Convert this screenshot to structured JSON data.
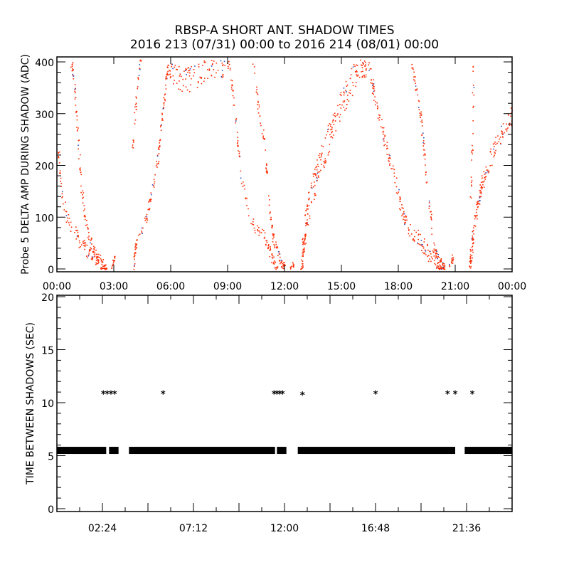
{
  "chart_data": [
    {
      "type": "scatter",
      "title": "RBSP-A SHORT ANT. SHADOW TIMES",
      "subtitle": "2016 213 (07/31) 00:00 to 2016 214 (08/01) 00:00",
      "xlabel": "",
      "ylabel": "Probe 5 DELTA AMP DURING SHADOW (ADC)",
      "xlim_hours": [
        0,
        24
      ],
      "ylim": [
        0,
        400
      ],
      "xticks": [
        "00:00",
        "03:00",
        "06:00",
        "09:00",
        "12:00",
        "15:00",
        "18:00",
        "21:00",
        "00:00"
      ],
      "yticks": [
        "0",
        "100",
        "200",
        "300",
        "400"
      ],
      "color": "#ff2a00",
      "tracks": [
        {
          "spread": 14,
          "n": 110,
          "points": [
            [
              0.0,
              250
            ],
            [
              0.2,
              160
            ],
            [
              0.5,
              100
            ],
            [
              0.9,
              75
            ],
            [
              1.2,
              50
            ],
            [
              1.6,
              35
            ],
            [
              2.0,
              22
            ],
            [
              2.4,
              8
            ],
            [
              2.6,
              0
            ]
          ]
        },
        {
          "spread": 10,
          "n": 110,
          "points": [
            [
              0.75,
              400
            ],
            [
              0.95,
              340
            ],
            [
              1.1,
              250
            ],
            [
              1.25,
              170
            ],
            [
              1.45,
              100
            ],
            [
              1.7,
              60
            ],
            [
              2.0,
              30
            ],
            [
              2.3,
              10
            ],
            [
              2.5,
              0
            ]
          ]
        },
        {
          "spread": 4,
          "n": 15,
          "points": [
            [
              2.85,
              3
            ],
            [
              2.95,
              12
            ],
            [
              3.0,
              25
            ]
          ]
        },
        {
          "spread": 8,
          "n": 120,
          "points": [
            [
              4.0,
              0
            ],
            [
              4.1,
              40
            ],
            [
              4.3,
              60
            ],
            [
              4.7,
              100
            ],
            [
              5.0,
              150
            ],
            [
              5.3,
              210
            ],
            [
              5.5,
              280
            ],
            [
              5.7,
              350
            ],
            [
              5.85,
              400
            ]
          ]
        },
        {
          "spread": 8,
          "n": 30,
          "points": [
            [
              3.9,
              200
            ],
            [
              4.1,
              300
            ],
            [
              4.3,
              380
            ],
            [
              4.4,
              400
            ]
          ]
        },
        {
          "spread": 25,
          "n": 110,
          "points": [
            [
              5.9,
              380
            ],
            [
              6.5,
              365
            ],
            [
              7.2,
              370
            ],
            [
              8.0,
              385
            ],
            [
              8.6,
              395
            ],
            [
              9.0,
              400
            ]
          ]
        },
        {
          "spread": 10,
          "n": 110,
          "points": [
            [
              9.0,
              400
            ],
            [
              9.3,
              330
            ],
            [
              9.5,
              250
            ],
            [
              9.7,
              180
            ],
            [
              10.0,
              120
            ],
            [
              10.4,
              80
            ],
            [
              10.9,
              65
            ],
            [
              11.2,
              35
            ],
            [
              11.5,
              5
            ],
            [
              11.6,
              0
            ]
          ]
        },
        {
          "spread": 10,
          "n": 100,
          "points": [
            [
              10.3,
              400
            ],
            [
              10.6,
              310
            ],
            [
              10.9,
              250
            ],
            [
              11.1,
              160
            ],
            [
              11.3,
              80
            ],
            [
              11.5,
              40
            ],
            [
              11.8,
              12
            ],
            [
              12.0,
              2
            ]
          ]
        },
        {
          "spread": 4,
          "n": 12,
          "points": [
            [
              12.3,
              3
            ],
            [
              12.45,
              12
            ],
            [
              12.5,
              2
            ]
          ]
        },
        {
          "spread": 28,
          "n": 260,
          "points": [
            [
              12.85,
              0
            ],
            [
              13.0,
              60
            ],
            [
              13.3,
              130
            ],
            [
              13.8,
              200
            ],
            [
              14.4,
              260
            ],
            [
              15.0,
              320
            ],
            [
              15.5,
              360
            ],
            [
              16.0,
              395
            ],
            [
              16.3,
              400
            ]
          ]
        },
        {
          "spread": 16,
          "n": 200,
          "points": [
            [
              16.4,
              400
            ],
            [
              16.7,
              340
            ],
            [
              17.0,
              290
            ],
            [
              17.4,
              230
            ],
            [
              17.8,
              170
            ],
            [
              18.2,
              110
            ],
            [
              18.5,
              75
            ],
            [
              19.0,
              65
            ],
            [
              19.4,
              40
            ],
            [
              19.8,
              20
            ],
            [
              20.2,
              5
            ],
            [
              20.4,
              0
            ]
          ]
        },
        {
          "spread": 10,
          "n": 110,
          "points": [
            [
              18.7,
              400
            ],
            [
              18.9,
              350
            ],
            [
              19.2,
              290
            ],
            [
              19.4,
              200
            ],
            [
              19.6,
              130
            ],
            [
              19.8,
              60
            ],
            [
              20.0,
              25
            ],
            [
              20.3,
              8
            ],
            [
              20.4,
              0
            ]
          ]
        },
        {
          "spread": 4,
          "n": 15,
          "points": [
            [
              20.6,
              2
            ],
            [
              20.8,
              15
            ],
            [
              20.9,
              30
            ]
          ]
        },
        {
          "spread": 8,
          "n": 25,
          "points": [
            [
              21.95,
              400
            ],
            [
              21.9,
              300
            ],
            [
              21.85,
              200
            ],
            [
              21.8,
              130
            ]
          ]
        },
        {
          "spread": 18,
          "n": 160,
          "points": [
            [
              21.75,
              0
            ],
            [
              21.9,
              60
            ],
            [
              22.2,
              130
            ],
            [
              22.6,
              190
            ],
            [
              23.2,
              245
            ],
            [
              24.0,
              300
            ]
          ]
        }
      ]
    },
    {
      "type": "scatter",
      "ylabel": "TIME BETWEEN SHADOWS (SEC)",
      "xlim_hours": [
        0,
        24
      ],
      "ylim": [
        0,
        20
      ],
      "xticks": [
        {
          "h": 2.4,
          "label": "02:24"
        },
        {
          "h": 7.2,
          "label": "07:12"
        },
        {
          "h": 12.0,
          "label": "12:00"
        },
        {
          "h": 16.8,
          "label": "16:48"
        },
        {
          "h": 21.6,
          "label": "21:36"
        }
      ],
      "yticks": [
        "0",
        "5",
        "10",
        "15",
        "20"
      ],
      "band_value": 5.5,
      "band_segments_hours": [
        [
          0.0,
          2.6
        ],
        [
          2.75,
          3.25
        ],
        [
          3.8,
          11.5
        ],
        [
          11.6,
          12.1
        ],
        [
          12.7,
          21.0
        ],
        [
          21.5,
          24.0
        ]
      ],
      "outliers": [
        [
          2.45,
          10.9
        ],
        [
          2.65,
          10.9
        ],
        [
          2.85,
          10.9
        ],
        [
          3.05,
          10.9
        ],
        [
          5.6,
          10.9
        ],
        [
          11.45,
          10.9
        ],
        [
          11.6,
          10.9
        ],
        [
          11.75,
          10.9
        ],
        [
          11.9,
          10.9
        ],
        [
          12.95,
          10.8
        ],
        [
          16.8,
          10.9
        ],
        [
          20.6,
          10.9
        ],
        [
          21.0,
          10.9
        ],
        [
          21.9,
          10.9
        ]
      ]
    }
  ]
}
